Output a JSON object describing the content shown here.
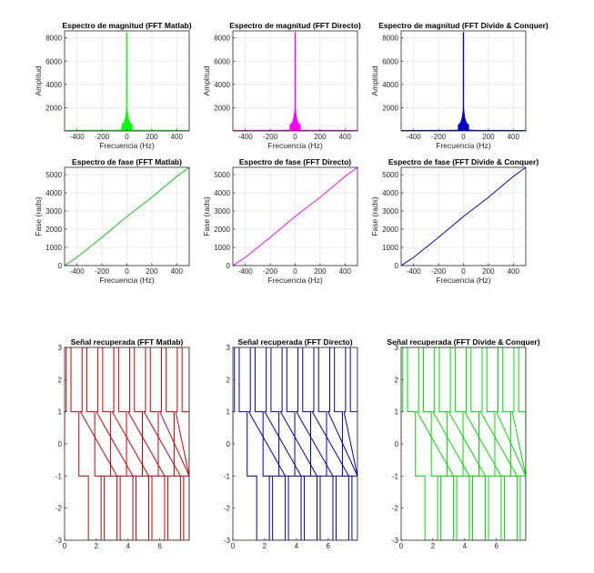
{
  "chart_data": [
    {
      "id": "mag1",
      "type": "line",
      "style": "magnitude",
      "title": "Espectro de magnitud (FFT Matlab)",
      "xlabel": "Frecuencia (Hz)",
      "ylabel": "Amplitud",
      "xlim": [
        -500,
        500
      ],
      "ylim": [
        0,
        8600
      ],
      "xticks": [
        -400,
        -200,
        0,
        200,
        400
      ],
      "yticks": [
        2000,
        4000,
        6000,
        8000
      ],
      "grid": true,
      "color": "#00ff00",
      "peak": 8500
    },
    {
      "id": "mag2",
      "type": "line",
      "style": "magnitude",
      "title": "Espectro de magnitud (FFT Directo)",
      "xlabel": "Frecuencia (Hz)",
      "ylabel": "Amplitud",
      "xlim": [
        -500,
        500
      ],
      "ylim": [
        0,
        8600
      ],
      "xticks": [
        -400,
        -200,
        0,
        200,
        400
      ],
      "yticks": [
        2000,
        4000,
        6000,
        8000
      ],
      "grid": true,
      "color": "#ff00ff",
      "peak": 8500
    },
    {
      "id": "mag3",
      "type": "line",
      "style": "magnitude",
      "title": "Espectro de magnitud (FFT Divide & Conquer)",
      "xlabel": "Frecuencia (Hz)",
      "ylabel": "Amplitud",
      "xlim": [
        -500,
        500
      ],
      "ylim": [
        0,
        8600
      ],
      "xticks": [
        -400,
        -200,
        0,
        200,
        400
      ],
      "yticks": [
        2000,
        4000,
        6000,
        8000
      ],
      "grid": true,
      "color": "#0000cc",
      "peak": 8500
    },
    {
      "id": "ph1",
      "type": "line",
      "style": "phase",
      "title": "Espectro de fase (FFT Matlab)",
      "xlabel": "Frecuencia (Hz)",
      "ylabel": "Fase (rads)",
      "xlim": [
        -500,
        500
      ],
      "ylim": [
        0,
        5400
      ],
      "xticks": [
        -400,
        -200,
        0,
        200,
        400
      ],
      "yticks": [
        0,
        1000,
        2000,
        3000,
        4000,
        5000
      ],
      "grid": true,
      "color": "#00cc00",
      "x": [
        -500,
        -400,
        -200,
        0,
        200,
        400,
        500
      ],
      "y": [
        0,
        450,
        1550,
        2700,
        3750,
        4900,
        5400
      ]
    },
    {
      "id": "ph2",
      "type": "line",
      "style": "phase",
      "title": "Espectro de fase (FFT Directo)",
      "xlabel": "Frecuencia (Hz)",
      "ylabel": "Fase (rads)",
      "xlim": [
        -500,
        500
      ],
      "ylim": [
        0,
        5400
      ],
      "xticks": [
        -400,
        -200,
        0,
        200,
        400
      ],
      "yticks": [
        0,
        1000,
        2000,
        3000,
        4000,
        5000
      ],
      "grid": true,
      "color": "#ff00ff",
      "x": [
        -500,
        -400,
        -200,
        0,
        200,
        400,
        500
      ],
      "y": [
        0,
        450,
        1550,
        2700,
        3750,
        4900,
        5400
      ]
    },
    {
      "id": "ph3",
      "type": "line",
      "style": "phase",
      "title": "Espectro de fase (FFT Divide & Conquer)",
      "xlabel": "Frecuencia (Hz)",
      "ylabel": "Fase (rads)",
      "xlim": [
        -500,
        500
      ],
      "ylim": [
        0,
        5400
      ],
      "xticks": [
        -400,
        -200,
        0,
        200,
        400
      ],
      "yticks": [
        0,
        1000,
        2000,
        3000,
        4000,
        5000
      ],
      "grid": true,
      "color": "#0000cc",
      "x": [
        -500,
        -400,
        -200,
        0,
        200,
        400,
        500
      ],
      "y": [
        0,
        450,
        1550,
        2700,
        3750,
        4900,
        5400
      ]
    },
    {
      "id": "sig1",
      "type": "line",
      "style": "signal",
      "title": "Señal recuperada (FFT Matlab)",
      "xlabel": "",
      "ylabel": "",
      "xlim": [
        0,
        7.85
      ],
      "ylim": [
        -3,
        3
      ],
      "xticks": [
        0,
        2,
        4,
        6
      ],
      "yticks": [
        -3,
        -2,
        -1,
        0,
        1,
        2,
        3
      ],
      "grid": false,
      "color": "#cc0000",
      "period": 1.0,
      "levels": [
        1,
        3,
        1,
        -1,
        -3,
        -1
      ],
      "fractions": [
        0.1,
        0.3,
        0.5,
        0.6,
        0.8,
        1.0
      ]
    },
    {
      "id": "sig2",
      "type": "line",
      "style": "signal",
      "title": "Señal recuperada (FFT Directo)",
      "xlabel": "",
      "ylabel": "",
      "xlim": [
        0,
        7.85
      ],
      "ylim": [
        -3,
        3
      ],
      "xticks": [
        0,
        2,
        4,
        6
      ],
      "yticks": [
        -3,
        -2,
        -1,
        0,
        1,
        2,
        3
      ],
      "grid": false,
      "color": "#0000aa",
      "period": 1.0,
      "levels": [
        1,
        3,
        1,
        -1,
        -3,
        -1
      ],
      "fractions": [
        0.1,
        0.3,
        0.5,
        0.6,
        0.8,
        1.0
      ]
    },
    {
      "id": "sig3",
      "type": "line",
      "style": "signal",
      "title": "Señal recuperada (FFT Divide & Conquer)",
      "xlabel": "",
      "ylabel": "",
      "xlim": [
        0,
        7.85
      ],
      "ylim": [
        -3,
        3
      ],
      "xticks": [
        0,
        2,
        4,
        6
      ],
      "yticks": [
        -3,
        -2,
        -1,
        0,
        1,
        2,
        3
      ],
      "grid": false,
      "color": "#00dd00",
      "period": 1.0,
      "levels": [
        1,
        3,
        1,
        -1,
        -3,
        -1
      ],
      "fractions": [
        0.1,
        0.3,
        0.5,
        0.6,
        0.8,
        1.0
      ]
    }
  ]
}
